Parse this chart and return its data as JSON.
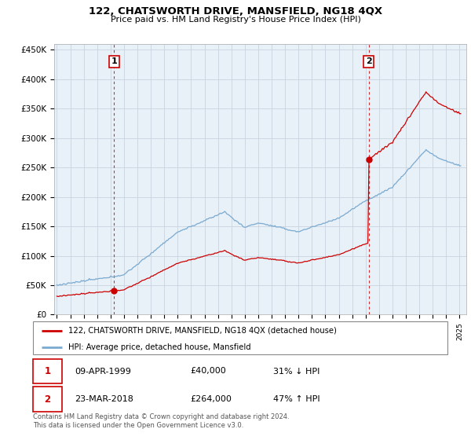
{
  "title": "122, CHATSWORTH DRIVE, MANSFIELD, NG18 4QX",
  "subtitle": "Price paid vs. HM Land Registry's House Price Index (HPI)",
  "ylabel_ticks": [
    "£0",
    "£50K",
    "£100K",
    "£150K",
    "£200K",
    "£250K",
    "£300K",
    "£350K",
    "£400K",
    "£450K"
  ],
  "ytick_values": [
    0,
    50000,
    100000,
    150000,
    200000,
    250000,
    300000,
    350000,
    400000,
    450000
  ],
  "ylim": [
    0,
    460000
  ],
  "xlim_start": 1994.8,
  "xlim_end": 2025.5,
  "sale1_x": 1999.27,
  "sale1_y": 40000,
  "sale2_x": 2018.22,
  "sale2_y": 264000,
  "legend_entry1": "122, CHATSWORTH DRIVE, MANSFIELD, NG18 4QX (detached house)",
  "legend_entry2": "HPI: Average price, detached house, Mansfield",
  "table_row1": [
    "1",
    "09-APR-1999",
    "£40,000",
    "31% ↓ HPI"
  ],
  "table_row2": [
    "2",
    "23-MAR-2018",
    "£264,000",
    "47% ↑ HPI"
  ],
  "footer": "Contains HM Land Registry data © Crown copyright and database right 2024.\nThis data is licensed under the Open Government Licence v3.0.",
  "line_color_sale": "#cc0000",
  "line_color_hpi": "#7aaad0",
  "bg_chart": "#e8f0f8",
  "grid_color": "#c8d4e0",
  "box_color": "#cc0000"
}
